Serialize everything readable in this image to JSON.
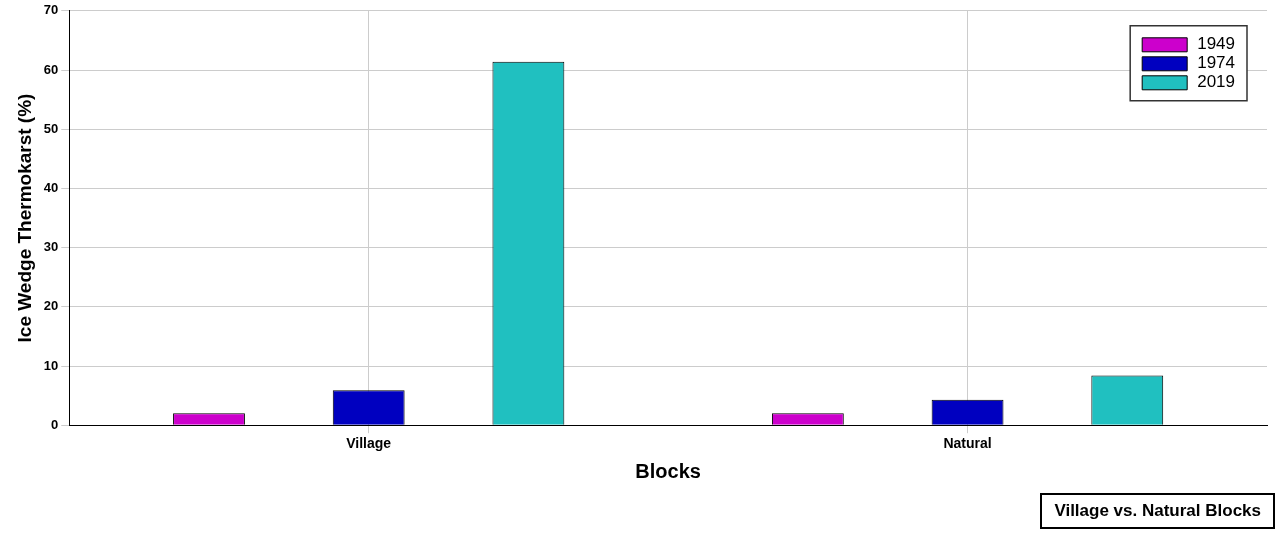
{
  "chart_data": {
    "type": "bar",
    "xlabel": "Blocks",
    "ylabel": "Ice Wedge Thermokarst (%)",
    "categories": [
      "Village",
      "Natural"
    ],
    "series": [
      {
        "name": "1949",
        "color": "#cc00cc",
        "values": [
          2.0,
          2.0
        ]
      },
      {
        "name": "1974",
        "color": "#0000c0",
        "values": [
          5.9,
          4.3
        ]
      },
      {
        "name": "2019",
        "color": "#20c0c0",
        "values": [
          61.4,
          8.4
        ]
      }
    ],
    "ylim": [
      0,
      70
    ],
    "yticks": [
      0,
      10,
      20,
      30,
      40,
      50,
      60,
      70
    ],
    "grid": true,
    "legend": "top right",
    "annotations": [
      "Village vs. Natural Blocks"
    ]
  }
}
